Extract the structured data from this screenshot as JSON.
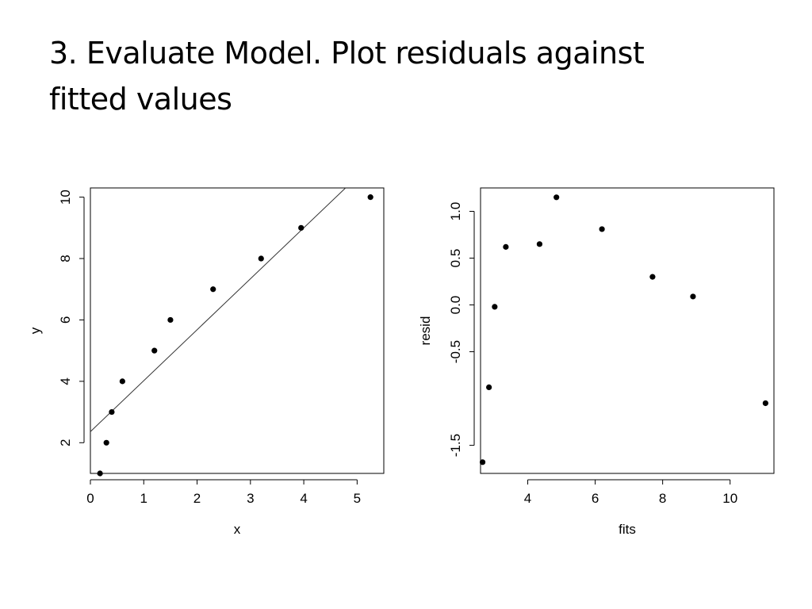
{
  "slide": {
    "title_lines": [
      "3. Evaluate Model. Plot residuals against",
      "fitted values"
    ]
  },
  "chart_data": [
    {
      "type": "scatter",
      "xlabel": "x",
      "ylabel": "y",
      "xlim": [
        0,
        5.5
      ],
      "ylim": [
        1,
        10.3
      ],
      "xticks": [
        "0",
        "1",
        "2",
        "3",
        "4",
        "5"
      ],
      "yticks": [
        "2",
        "4",
        "6",
        "8",
        "10"
      ],
      "x": [
        0.18,
        0.3,
        0.4,
        0.6,
        1.2,
        1.5,
        2.3,
        3.2,
        3.95,
        5.25
      ],
      "y": [
        1,
        2,
        3,
        4,
        5,
        6,
        7,
        8,
        9,
        10
      ],
      "fit_line": {
        "intercept": 2.36,
        "slope": 1.66
      },
      "grid": false,
      "legend": "none"
    },
    {
      "type": "scatter",
      "xlabel": "fits",
      "ylabel": "resid",
      "xlim": [
        2.6,
        11.3
      ],
      "ylim": [
        -1.8,
        1.25
      ],
      "xticks": [
        "4",
        "6",
        "8",
        "10"
      ],
      "yticks": [
        "-1.5",
        "-0.5",
        "0.0",
        "0.5",
        "1.0"
      ],
      "x": [
        2.66,
        2.85,
        3.02,
        3.35,
        4.35,
        4.85,
        6.2,
        7.7,
        8.9,
        11.05
      ],
      "y": [
        -1.68,
        -0.88,
        -0.02,
        0.62,
        0.65,
        1.15,
        0.81,
        0.3,
        0.09,
        -1.05
      ],
      "grid": false,
      "legend": "none"
    }
  ]
}
